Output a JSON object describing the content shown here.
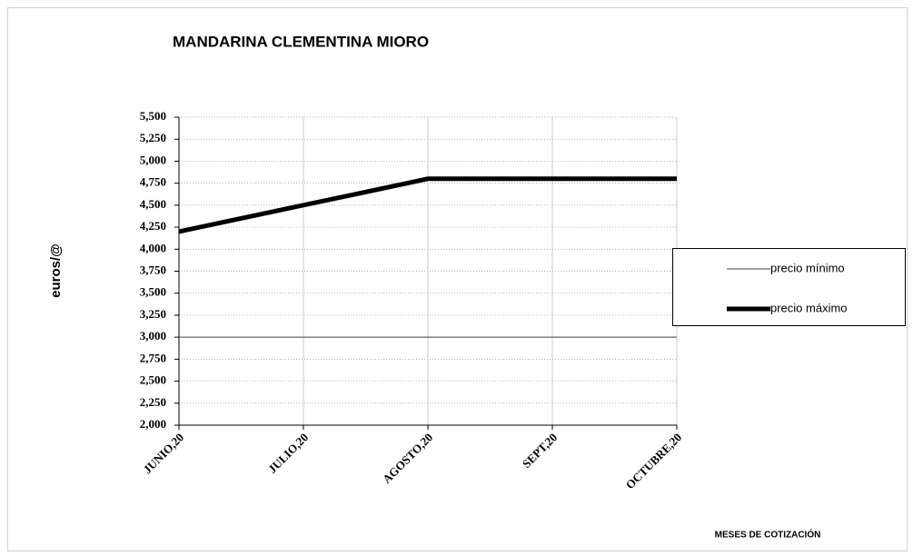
{
  "chart_data": {
    "type": "line",
    "title": "MANDARINA CLEMENTINA MIORO",
    "y_label": "euros/@",
    "x_label": "MESES DE COTIZACIÓN",
    "categories": [
      "JUNIO,20",
      "JULIO,20",
      "AGOSTO,20",
      "SEPT,20",
      "OCTUBRE,20"
    ],
    "series": [
      {
        "name": "precio mínimo",
        "color": "#404040",
        "values": [
          3.0,
          3.0,
          3.0,
          3.0,
          3.0
        ]
      },
      {
        "name": "precio máximo",
        "color": "#000000",
        "values": [
          4.2,
          4.5,
          4.8,
          4.8,
          4.8
        ]
      }
    ],
    "ylim": [
      2.0,
      5.5
    ],
    "yticks": [
      {
        "value": 2.0,
        "label": "2,000"
      },
      {
        "value": 2.25,
        "label": "2,250"
      },
      {
        "value": 2.5,
        "label": "2,500"
      },
      {
        "value": 2.75,
        "label": "2,750"
      },
      {
        "value": 3.0,
        "label": "3,000"
      },
      {
        "value": 3.25,
        "label": "3,250"
      },
      {
        "value": 3.5,
        "label": "3,500"
      },
      {
        "value": 3.75,
        "label": "3,750"
      },
      {
        "value": 4.0,
        "label": "4,000"
      },
      {
        "value": 4.25,
        "label": "4,250"
      },
      {
        "value": 4.5,
        "label": "4,500"
      },
      {
        "value": 4.75,
        "label": "4,750"
      },
      {
        "value": 5.0,
        "label": "5,000"
      },
      {
        "value": 5.25,
        "label": "5,250"
      },
      {
        "value": 5.5,
        "label": "5,500"
      }
    ],
    "grid": true,
    "legend": "right"
  }
}
